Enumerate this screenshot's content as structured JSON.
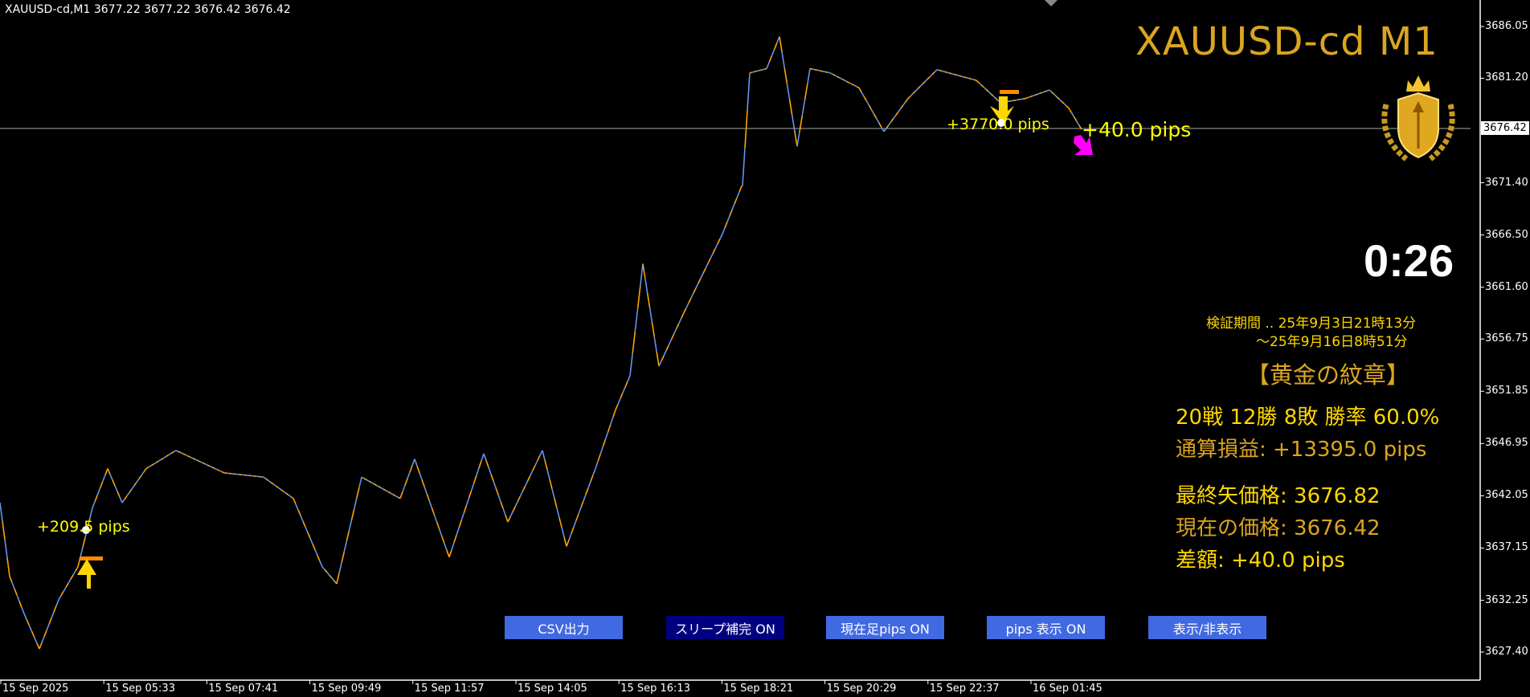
{
  "header": {
    "symbol_info": "XAUUSD-cd,M1  3677.22 3677.22 3676.42 3676.42",
    "title": "XAUUSD-cd M1",
    "timer": "0:26"
  },
  "colors": {
    "bull": "#6495ED",
    "bear": "#FFA500",
    "gold": "#DAA520",
    "yellow": "#FFD700",
    "button": "#4169E1",
    "button_active": "#000080",
    "sell_arrow": "#FF00FF"
  },
  "chart_data": {
    "type": "line",
    "yaxis_ticks": [
      "3686.05",
      "3681.20",
      "3671.40",
      "3666.50",
      "3661.60",
      "3656.75",
      "3651.85",
      "3646.95",
      "3642.05",
      "3637.15",
      "3632.25",
      "3627.40"
    ],
    "current_price": "3676.42",
    "xaxis_ticks": [
      "15 Sep 2025",
      "15 Sep 05:33",
      "15 Sep 07:41",
      "15 Sep 09:49",
      "15 Sep 11:57",
      "15 Sep 14:05",
      "15 Sep 16:13",
      "15 Sep 18:21",
      "15 Sep 20:29",
      "15 Sep 22:37",
      "16 Sep 01:45"
    ],
    "ylim": [
      3627.4,
      3686.05
    ],
    "price_path": {
      "bar": [
        0,
        12,
        30,
        49,
        73,
        97,
        115,
        134,
        152,
        182,
        219,
        279,
        328,
        365,
        401,
        419,
        450,
        498,
        516,
        559,
        602,
        632,
        675,
        705,
        741,
        766,
        784,
        800,
        820,
        851,
        899,
        923,
        924,
        933,
        954,
        970,
        992,
        1008,
        1033,
        1069,
        1100,
        1130,
        1166,
        1215,
        1245,
        1276,
        1306,
        1330,
        1346
      ],
      "price": [
        3641.4,
        3634.5,
        3631.0,
        3627.7,
        3632.3,
        3635.4,
        3640.9,
        3644.6,
        3641.4,
        3644.6,
        3646.3,
        3644.2,
        3643.8,
        3641.8,
        3635.4,
        3633.8,
        3643.8,
        3641.8,
        3645.5,
        3636.3,
        3646.0,
        3639.6,
        3646.3,
        3637.3,
        3644.6,
        3650.1,
        3653.3,
        3663.8,
        3654.2,
        3659.2,
        3666.6,
        3671.1,
        3671.1,
        3681.7,
        3682.1,
        3685.1,
        3674.8,
        3682.1,
        3681.7,
        3680.3,
        3676.2,
        3679.3,
        3682.0,
        3681.0,
        3678.9,
        3679.3,
        3680.1,
        3678.4,
        3676.4
      ]
    }
  },
  "signals": [
    {
      "type": "buy",
      "label": "+209.5 pips"
    },
    {
      "type": "sell",
      "label": "+3770.0 pips"
    },
    {
      "type": "current",
      "label": "+40.0 pips"
    }
  ],
  "panel": {
    "period_line1": "検証期間 .. 25年9月3日21時13分",
    "period_line2": "～25年9月16日8時51分",
    "name": "【黄金の紋章】",
    "record": "20戦 12勝 8敗  勝率 60.0%",
    "total": "通算損益:  +13395.0 pips",
    "last_arrow_price": "最終矢価格: 3676.82",
    "current_price": "現在の価格: 3676.42",
    "diff": "差額:     +40.0 pips"
  },
  "buttons": [
    {
      "label": "CSV出力"
    },
    {
      "label": "スリープ補完 ON"
    },
    {
      "label": "現在足pips ON"
    },
    {
      "label": "pips 表示  ON"
    },
    {
      "label": "表示/非表示"
    }
  ]
}
